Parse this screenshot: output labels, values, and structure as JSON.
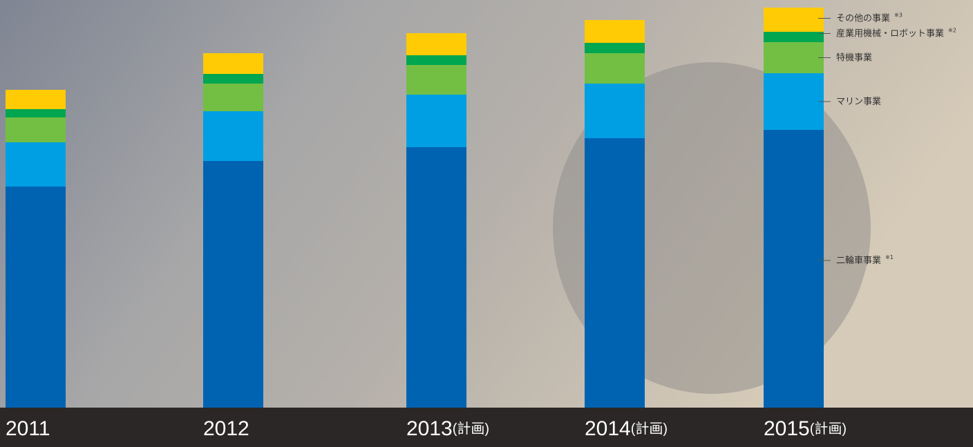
{
  "chart_data": {
    "type": "stacked-bar",
    "categories": [
      "2011",
      "2012",
      "2013",
      "2014",
      "2015"
    ],
    "category_notes": [
      null,
      null,
      "(計画)",
      "(計画)",
      "(計画)"
    ],
    "series": [
      {
        "name": "二輪車事業",
        "note": "※1",
        "color": "#0063b1",
        "values": [
          320,
          357,
          377,
          390,
          402
        ]
      },
      {
        "name": "マリン事業",
        "color": "#009fe3",
        "values": [
          64,
          72,
          76,
          79,
          82
        ]
      },
      {
        "name": "特機事業",
        "color": "#72bf44",
        "values": [
          36,
          40,
          43,
          44,
          45
        ]
      },
      {
        "name": "産業用機械・ロボット事業",
        "note": "※2",
        "color": "#00a650",
        "values": [
          12,
          14,
          14,
          15,
          15
        ]
      },
      {
        "name": "その他の事業",
        "note": "※3",
        "color": "#ffcb05",
        "values": [
          28,
          30,
          32,
          33,
          35
        ]
      }
    ],
    "ylim": [
      0,
      590
    ]
  }
}
